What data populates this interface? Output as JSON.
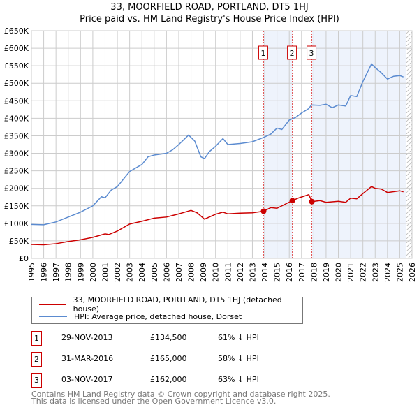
{
  "title": "33, MOORFIELD ROAD, PORTLAND, DT5 1HJ",
  "subtitle": "Price paid vs. HM Land Registry's House Price Index (HPI)",
  "chart_data": {
    "type": "line",
    "xlim": [
      1995,
      2026
    ],
    "ylim": [
      0,
      650000
    ],
    "yticks": [
      {
        "v": 0,
        "label": "£0"
      },
      {
        "v": 50000,
        "label": "£50K"
      },
      {
        "v": 100000,
        "label": "£100K"
      },
      {
        "v": 150000,
        "label": "£150K"
      },
      {
        "v": 200000,
        "label": "£200K"
      },
      {
        "v": 250000,
        "label": "£250K"
      },
      {
        "v": 300000,
        "label": "£300K"
      },
      {
        "v": 350000,
        "label": "£350K"
      },
      {
        "v": 400000,
        "label": "£400K"
      },
      {
        "v": 450000,
        "label": "£450K"
      },
      {
        "v": 500000,
        "label": "£500K"
      },
      {
        "v": 550000,
        "label": "£550K"
      },
      {
        "v": 600000,
        "label": "£600K"
      },
      {
        "v": 650000,
        "label": "£650K"
      }
    ],
    "xticks": [
      "1995",
      "1996",
      "1997",
      "1998",
      "1999",
      "2000",
      "2001",
      "2002",
      "2003",
      "2004",
      "2005",
      "2006",
      "2007",
      "2008",
      "2009",
      "2010",
      "2011",
      "2012",
      "2013",
      "2014",
      "2015",
      "2016",
      "2017",
      "2018",
      "2019",
      "2020",
      "2021",
      "2022",
      "2023",
      "2024",
      "2025",
      "2026"
    ],
    "grid": true,
    "series": [
      {
        "name": "33, MOORFIELD ROAD, PORTLAND, DT5 1HJ (detached house)",
        "color": "#cc0000",
        "x": [
          1995,
          1996,
          1997,
          1998,
          1999,
          2000,
          2001,
          2001.3,
          2002,
          2003,
          2004,
          2005,
          2006,
          2007,
          2008,
          2008.5,
          2009.1,
          2010,
          2010.6,
          2011,
          2012,
          2013,
          2013.91,
          2014.5,
          2015,
          2016.25,
          2016.8,
          2017.6,
          2017.84,
          2018.5,
          2019,
          2020,
          2020.6,
          2021,
          2021.5,
          2022,
          2022.7,
          2023,
          2023.5,
          2024,
          2025,
          2025.3
        ],
        "y": [
          40000,
          39000,
          42000,
          48000,
          53000,
          60000,
          70000,
          68000,
          78000,
          98000,
          106000,
          115000,
          118000,
          127000,
          137000,
          130000,
          112000,
          126000,
          132000,
          127000,
          129000,
          130000,
          134500,
          145000,
          143000,
          165000,
          173000,
          182000,
          162000,
          165000,
          160000,
          163000,
          160000,
          172000,
          170000,
          185000,
          205000,
          200000,
          198000,
          188000,
          193000,
          190000
        ]
      },
      {
        "name": "HPI: Average price, detached house, Dorset",
        "color": "#5b8bd0",
        "x": [
          1995,
          1996,
          1997,
          1998,
          1999,
          2000,
          2000.7,
          2001,
          2001.5,
          2002,
          2003,
          2004,
          2004.5,
          2005,
          2006,
          2006.5,
          2007,
          2007.8,
          2008.3,
          2008.8,
          2009.1,
          2009.5,
          2010,
          2010.6,
          2011,
          2012,
          2013,
          2013.9,
          2014.5,
          2015,
          2015.4,
          2016,
          2016.5,
          2017,
          2017.6,
          2017.8,
          2018.5,
          2019,
          2019.5,
          2020,
          2020.6,
          2021,
          2021.5,
          2022,
          2022.7,
          2023,
          2023.5,
          2024,
          2024.5,
          2025,
          2025.3
        ],
        "y": [
          97000,
          96000,
          104000,
          118000,
          132000,
          150000,
          176000,
          173000,
          195000,
          205000,
          248000,
          268000,
          290000,
          295000,
          300000,
          310000,
          325000,
          352000,
          335000,
          290000,
          285000,
          305000,
          320000,
          342000,
          325000,
          328000,
          333000,
          345000,
          355000,
          372000,
          368000,
          395000,
          402000,
          415000,
          428000,
          438000,
          437000,
          440000,
          430000,
          438000,
          435000,
          465000,
          462000,
          505000,
          555000,
          545000,
          530000,
          512000,
          520000,
          522000,
          518000
        ]
      }
    ],
    "sales": [
      {
        "n": "1",
        "x": 2013.91,
        "y": 134500
      },
      {
        "n": "2",
        "x": 2016.25,
        "y": 165000
      },
      {
        "n": "3",
        "x": 2017.84,
        "y": 162000
      }
    ],
    "forecast_from": 2025.5
  },
  "legend": [
    "33, MOORFIELD ROAD, PORTLAND, DT5 1HJ (detached house)",
    "HPI: Average price, detached house, Dorset"
  ],
  "transactions": [
    {
      "n": "1",
      "date": "29-NOV-2013",
      "price": "£134,500",
      "hpi": "61% ↓ HPI"
    },
    {
      "n": "2",
      "date": "31-MAR-2016",
      "price": "£165,000",
      "hpi": "58% ↓ HPI"
    },
    {
      "n": "3",
      "date": "03-NOV-2017",
      "price": "£162,000",
      "hpi": "63% ↓ HPI"
    }
  ],
  "footer": [
    "Contains HM Land Registry data © Crown copyright and database right 2025.",
    "This data is licensed under the Open Government Licence v3.0."
  ]
}
